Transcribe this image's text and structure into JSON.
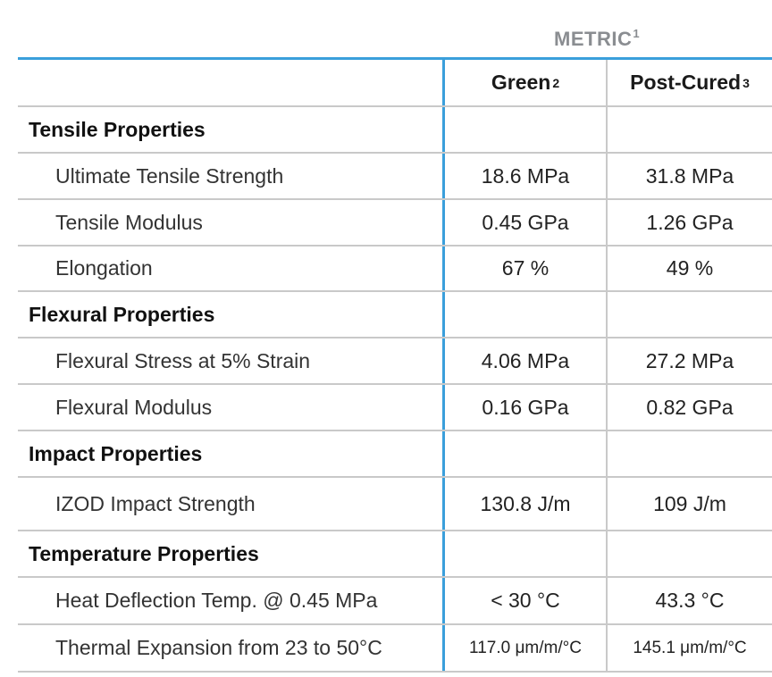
{
  "metric": {
    "title": "METRIC",
    "footnote": "1"
  },
  "headers": {
    "green": "Green",
    "green_note": "2",
    "cured": "Post-Cured",
    "cured_note": "3"
  },
  "rows": [
    {
      "type": "section",
      "label": "Tensile Properties",
      "green": "",
      "cured": ""
    },
    {
      "type": "property",
      "label": "Ultimate Tensile Strength",
      "green": "18.6 MPa",
      "cured": "31.8 MPa"
    },
    {
      "type": "property",
      "label": "Tensile Modulus",
      "green": "0.45 GPa",
      "cured": "1.26 GPa"
    },
    {
      "type": "property",
      "label": "Elongation",
      "green": "67 %",
      "cured": "49 %"
    },
    {
      "type": "section",
      "label": "Flexural Properties",
      "green": "",
      "cured": ""
    },
    {
      "type": "property",
      "label": "Flexural Stress at 5% Strain",
      "green": "4.06 MPa",
      "cured": "27.2 MPa"
    },
    {
      "type": "property",
      "label": "Flexural Modulus",
      "green": "0.16 GPa",
      "cured": "0.82 GPa"
    },
    {
      "type": "section",
      "label": "Impact Properties",
      "green": "",
      "cured": ""
    },
    {
      "type": "property",
      "label": "IZOD Impact Strength",
      "green": "130.8 J/m",
      "cured": "109 J/m"
    },
    {
      "type": "section",
      "label": "Temperature Properties",
      "green": "",
      "cured": ""
    },
    {
      "type": "property",
      "label": "Heat Deflection Temp. @ 0.45 MPa",
      "green": "< 30 °C",
      "cured": "43.3 °C"
    },
    {
      "type": "property",
      "label": "Thermal Expansion from 23 to 50°C",
      "green": "117.0 μm/m/°C",
      "cured": "145.1 μm/m/°C"
    }
  ],
  "colors": {
    "accent": "#3a9fdb",
    "grid": "#c9c9c9",
    "metric_title": "#8a8d91"
  }
}
